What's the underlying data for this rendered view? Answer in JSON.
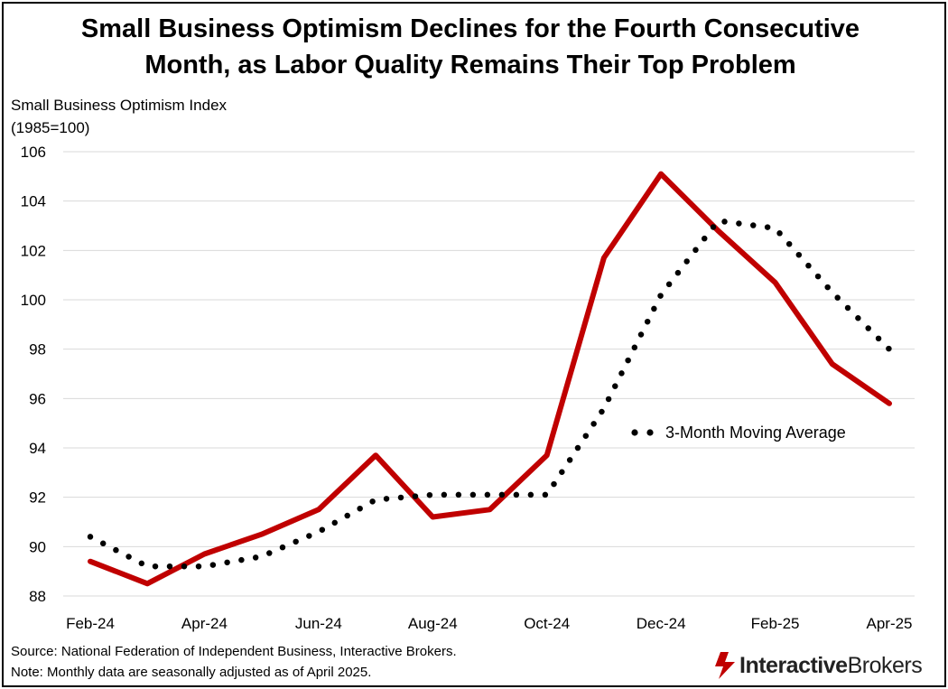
{
  "title_line1": "Small Business Optimism Declines for the Fourth Consecutive",
  "title_line2": "Month, as Labor Quality Remains Their Top Problem",
  "chart_data": {
    "type": "line",
    "ylabel_line1": "Small Business Optimism Index",
    "ylabel_line2": "(1985=100)",
    "ylim": [
      88,
      106
    ],
    "yticks": [
      88,
      90,
      92,
      94,
      96,
      98,
      100,
      102,
      104,
      106
    ],
    "grid": true,
    "x": [
      "Feb-24",
      "Mar-24",
      "Apr-24",
      "May-24",
      "Jun-24",
      "Jul-24",
      "Aug-24",
      "Sep-24",
      "Oct-24",
      "Nov-24",
      "Dec-24",
      "Jan-25",
      "Feb-25",
      "Mar-25",
      "Apr-25"
    ],
    "xtick_labels": [
      "Feb-24",
      "Apr-24",
      "Jun-24",
      "Aug-24",
      "Oct-24",
      "Dec-24",
      "Feb-25",
      "Apr-25"
    ],
    "series": [
      {
        "name": "Small Business Optimism Index",
        "style": "solid",
        "color": "#C00000",
        "values": [
          89.4,
          88.5,
          89.7,
          90.5,
          91.5,
          93.7,
          91.2,
          91.5,
          93.7,
          101.7,
          105.1,
          102.8,
          100.7,
          97.4,
          95.8
        ]
      },
      {
        "name": "3-Month Moving Average",
        "style": "dotted",
        "color": "#000000",
        "values": [
          90.4,
          89.2,
          89.2,
          89.6,
          90.6,
          91.9,
          92.1,
          92.1,
          92.1,
          95.6,
          100.2,
          103.2,
          102.9,
          100.3,
          98.0
        ]
      }
    ],
    "legend_label": "3-Month Moving Average",
    "legend_placement": "center-right"
  },
  "footer_line1": "Source: National Federation of Independent Business, Interactive Brokers.",
  "footer_line2": "Note: Monthly data are seasonally adjusted as of April 2025.",
  "logo_bold": "Interactive",
  "logo_regular": "Brokers",
  "colors": {
    "accent": "#C00000",
    "grid": "#D9D9D9",
    "text": "#000000"
  }
}
